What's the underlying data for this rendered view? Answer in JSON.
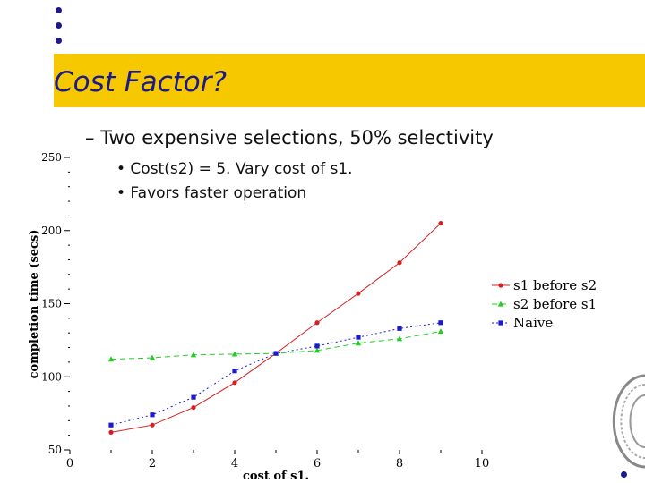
{
  "slide": {
    "title": "Cost Factor?",
    "bullet": "– Two expensive selections, 50% selectivity",
    "sub_bullets": [
      "• Cost(s2) = 5.  Vary cost of s1.",
      "• Favors faster operation"
    ]
  },
  "colors": {
    "title_band": "#f5c800",
    "title_text": "#1a1a8c",
    "bullet_dot": "#1a1a8c"
  },
  "chart_data": {
    "type": "line",
    "xlabel": "cost of s1.",
    "ylabel": "completion time (secs)",
    "xlim": [
      0,
      10
    ],
    "ylim": [
      50,
      250
    ],
    "x_ticks": [
      0,
      2,
      4,
      6,
      8,
      10
    ],
    "y_ticks": [
      50,
      100,
      150,
      200,
      250
    ],
    "legend_position": "right",
    "series": [
      {
        "name": "s1 before s2",
        "color": "#d42020",
        "marker": "circle",
        "line": "solid",
        "x": [
          1,
          2,
          3,
          4,
          5,
          6,
          7,
          8,
          9
        ],
        "y": [
          62,
          67,
          79,
          96,
          116,
          137,
          157,
          178,
          205
        ]
      },
      {
        "name": "s2 before s1",
        "color": "#22cc22",
        "marker": "triangle",
        "line": "dashed",
        "x": [
          1,
          2,
          3,
          4,
          5,
          6,
          7,
          8,
          9
        ],
        "y": [
          112,
          113,
          115,
          115.5,
          116,
          118,
          123,
          126,
          131
        ]
      },
      {
        "name": "Naive",
        "color": "#1a1ad0",
        "marker": "square",
        "line": "dotted",
        "x": [
          1,
          2,
          3,
          4,
          5,
          6,
          7,
          8,
          9
        ],
        "y": [
          67,
          74,
          86,
          104,
          116,
          121,
          127,
          133,
          137
        ]
      }
    ]
  }
}
